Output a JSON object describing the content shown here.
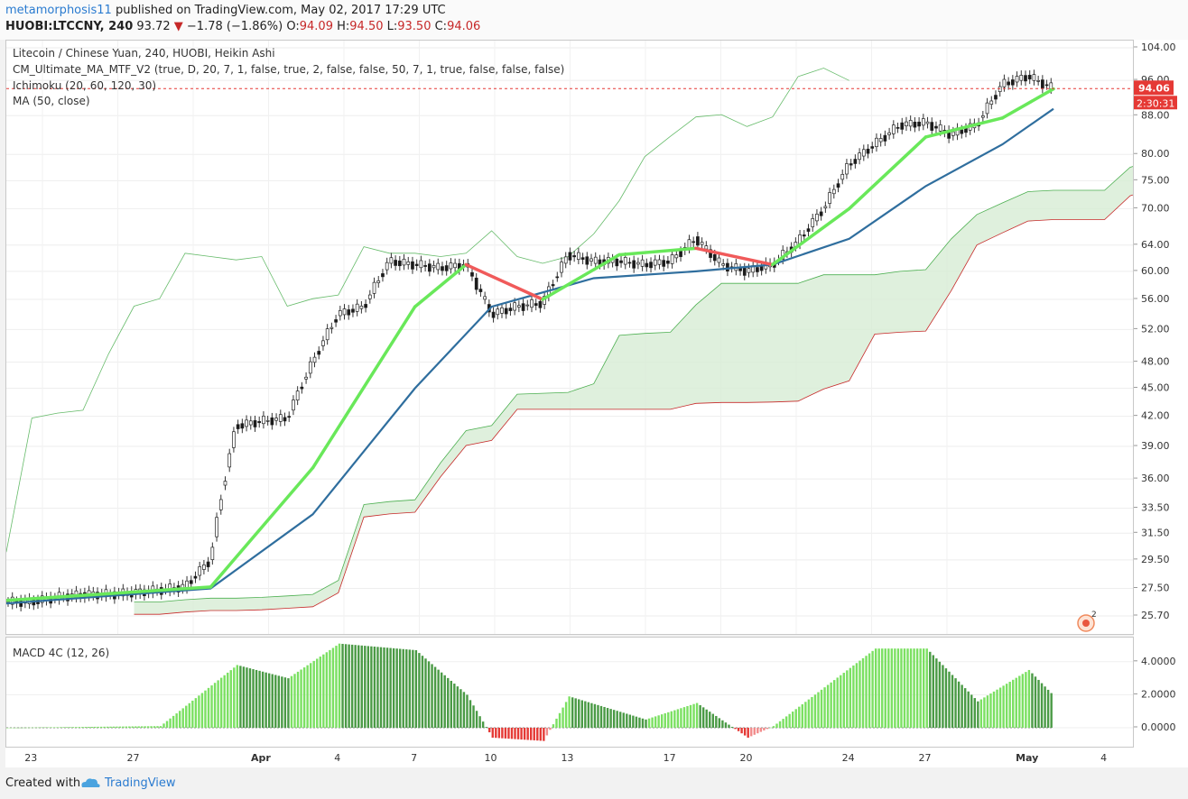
{
  "header": {
    "author": "metamorphosis11",
    "published_text": "published on TradingView.com, May 02, 2017 17:29 UTC",
    "symbol": "HUOBI:LTCCNY, 240",
    "last": "93.72",
    "change_arrow": "▼",
    "change": "−1.78 (−1.86%)",
    "o_label": "O:",
    "o_value": "94.09",
    "h_label": "H:",
    "h_value": "94.50",
    "l_label": "L:",
    "l_value": "93.50",
    "c_label": "C:",
    "c_value": "94.06"
  },
  "legend": {
    "title": "Litecoin / Chinese Yuan, 240, HUOBI, Heikin Ashi",
    "study1": "CM_Ultimate_MA_MTF_V2 (true, D, 20, 7, 1, false, true, 2, false, false, 50, 7, 1, true, false, false, false)",
    "study2": "Ichimoku (20, 60, 120, 30)",
    "study3": "MA (50, close)"
  },
  "macd_label": "MACD 4C (12, 26)",
  "price_badge": "94.06",
  "countdown_badge": "2:30:31",
  "alert_count": "2",
  "footer": {
    "created": "Created with",
    "brand": "TradingView"
  },
  "colors": {
    "up": "#4caf50",
    "down": "#e57373",
    "ma_fast": "#69e85a",
    "ma_fast_down": "#f05a5a",
    "ma_slow": "#2f6e9e",
    "cloud": "#d7ecd4",
    "price_line": "#e53935",
    "badge_red": "#e53935",
    "brand": "#2a7bd0"
  },
  "chart_data": [
    {
      "type": "candlestick",
      "title": "Litecoin / Chinese Yuan, 240, HUOBI, Heikin Ashi",
      "y_scale": "log",
      "y_ticks": [
        104.0,
        96.0,
        88.0,
        80.0,
        75.0,
        70.0,
        64.0,
        60.0,
        56.0,
        52.0,
        48.0,
        45.0,
        42.0,
        39.0,
        36.0,
        33.5,
        31.5,
        29.5,
        27.5,
        25.7
      ],
      "x_ticks": [
        "23",
        "27",
        "Apr",
        "4",
        "7",
        "10",
        "13",
        "17",
        "20",
        "24",
        "27",
        "May",
        "4"
      ],
      "last_price": 94.06,
      "series": [
        {
          "name": "Heikin Ashi close",
          "values": [
            [
              "2017-03-22",
              26.6
            ],
            [
              "2017-03-23",
              26.6
            ],
            [
              "2017-03-24",
              26.9
            ],
            [
              "2017-03-25",
              27.1
            ],
            [
              "2017-03-26",
              27.1
            ],
            [
              "2017-03-27",
              27.2
            ],
            [
              "2017-03-28",
              27.4
            ],
            [
              "2017-03-29",
              27.6
            ],
            [
              "2017-03-30",
              29.5
            ],
            [
              "2017-03-31",
              41.0
            ],
            [
              "2017-04-01",
              41.5
            ],
            [
              "2017-04-02",
              41.8
            ],
            [
              "2017-04-03",
              48.0
            ],
            [
              "2017-04-04",
              54.0
            ],
            [
              "2017-04-05",
              55.0
            ],
            [
              "2017-04-06",
              61.5
            ],
            [
              "2017-04-07",
              61.0
            ],
            [
              "2017-04-08",
              60.5
            ],
            [
              "2017-04-09",
              61.0
            ],
            [
              "2017-04-10",
              54.0
            ],
            [
              "2017-04-11",
              55.0
            ],
            [
              "2017-04-12",
              55.5
            ],
            [
              "2017-04-13",
              62.5
            ],
            [
              "2017-04-14",
              61.5
            ],
            [
              "2017-04-15",
              61.5
            ],
            [
              "2017-04-16",
              61.0
            ],
            [
              "2017-04-17",
              61.5
            ],
            [
              "2017-04-18",
              65.0
            ],
            [
              "2017-04-19",
              61.0
            ],
            [
              "2017-04-20",
              60.0
            ],
            [
              "2017-04-21",
              61.0
            ],
            [
              "2017-04-22",
              64.5
            ],
            [
              "2017-04-23",
              70.0
            ],
            [
              "2017-04-24",
              78.0
            ],
            [
              "2017-04-25",
              82.0
            ],
            [
              "2017-04-26",
              86.0
            ],
            [
              "2017-04-27",
              86.5
            ],
            [
              "2017-04-28",
              84.0
            ],
            [
              "2017-04-29",
              86.0
            ],
            [
              "2017-04-30",
              95.0
            ],
            [
              "2017-05-01",
              97.0
            ],
            [
              "2017-05-02",
              94.06
            ]
          ]
        },
        {
          "name": "CM_Ultimate_MA_MTF_V2",
          "values": [
            [
              "2017-03-22",
              26.7
            ],
            [
              "2017-03-30",
              27.6
            ],
            [
              "2017-04-03",
              37.0
            ],
            [
              "2017-04-07",
              55.0
            ],
            [
              "2017-04-09",
              61.0
            ],
            [
              "2017-04-12",
              56.0
            ],
            [
              "2017-04-15",
              62.5
            ],
            [
              "2017-04-18",
              63.5
            ],
            [
              "2017-04-21",
              61.0
            ],
            [
              "2017-04-24",
              70.0
            ],
            [
              "2017-04-27",
              83.5
            ],
            [
              "2017-04-30",
              87.5
            ],
            [
              "2017-05-02",
              94.0
            ]
          ]
        },
        {
          "name": "MA (50, close)",
          "values": [
            [
              "2017-03-22",
              26.5
            ],
            [
              "2017-03-30",
              27.5
            ],
            [
              "2017-04-03",
              33.0
            ],
            [
              "2017-04-07",
              45.0
            ],
            [
              "2017-04-10",
              55.0
            ],
            [
              "2017-04-14",
              59.0
            ],
            [
              "2017-04-18",
              60.0
            ],
            [
              "2017-04-21",
              61.0
            ],
            [
              "2017-04-24",
              65.0
            ],
            [
              "2017-04-27",
              74.0
            ],
            [
              "2017-04-30",
              82.0
            ],
            [
              "2017-05-02",
              89.5
            ]
          ]
        }
      ]
    },
    {
      "type": "bar",
      "title": "MACD 4C (12, 26)",
      "y_ticks": [
        4.0,
        2.0,
        0.0
      ],
      "series": [
        {
          "name": "MACD 4C",
          "values": [
            [
              "2017-03-22",
              0.0
            ],
            [
              "2017-03-28",
              0.1
            ],
            [
              "2017-03-31",
              3.8
            ],
            [
              "2017-04-02",
              3.0
            ],
            [
              "2017-04-04",
              5.1
            ],
            [
              "2017-04-07",
              4.7
            ],
            [
              "2017-04-09",
              2.0
            ],
            [
              "2017-04-10",
              -0.6
            ],
            [
              "2017-04-12",
              -0.8
            ],
            [
              "2017-04-13",
              1.9
            ],
            [
              "2017-04-16",
              0.5
            ],
            [
              "2017-04-18",
              1.5
            ],
            [
              "2017-04-20",
              -0.6
            ],
            [
              "2017-04-21",
              0.1
            ],
            [
              "2017-04-25",
              4.8
            ],
            [
              "2017-04-27",
              4.8
            ],
            [
              "2017-04-29",
              1.6
            ],
            [
              "2017-05-01",
              3.5
            ],
            [
              "2017-05-02",
              1.9
            ]
          ]
        }
      ]
    }
  ]
}
